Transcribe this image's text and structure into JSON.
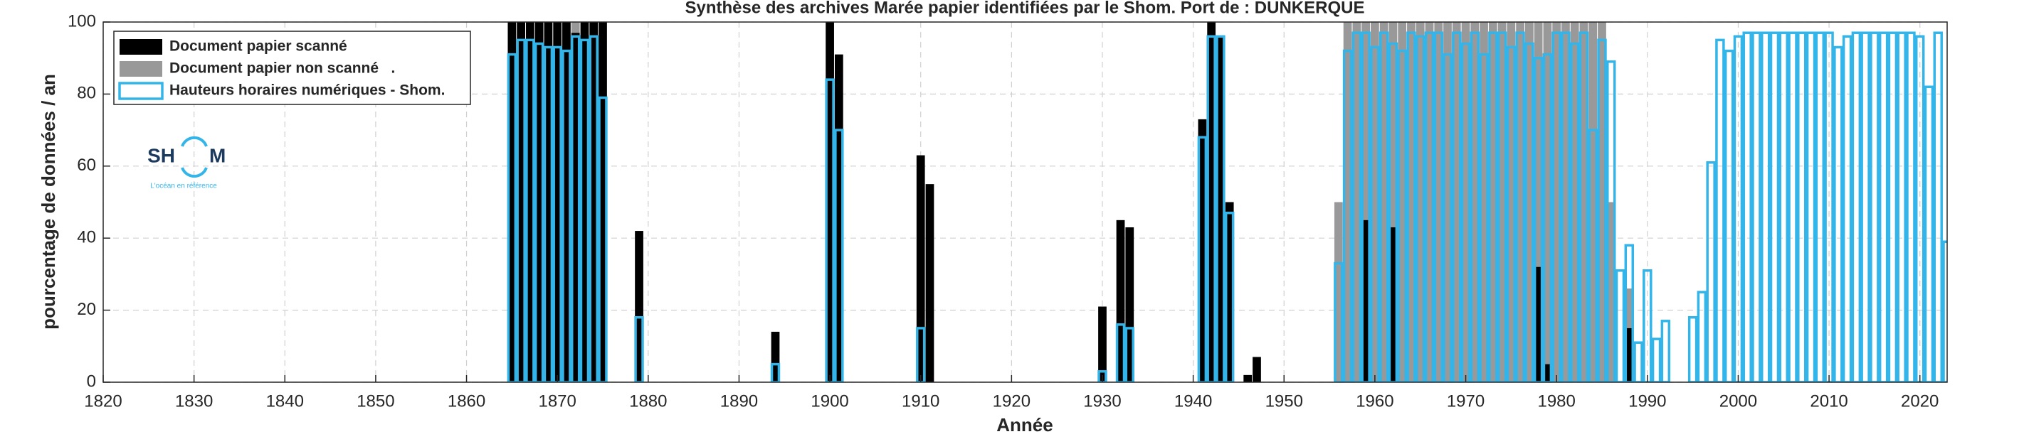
{
  "chart_data": {
    "type": "bar",
    "title": "Synthèse des archives Marée papier identifiées par le Shom. Port de : DUNKERQUE",
    "xlabel": "Année",
    "ylabel": "pourcentage de données / an",
    "xlim": [
      1820,
      2023
    ],
    "ylim": [
      0,
      100
    ],
    "xticks": [
      1820,
      1830,
      1840,
      1850,
      1860,
      1870,
      1880,
      1890,
      1900,
      1910,
      1920,
      1930,
      1940,
      1950,
      1960,
      1970,
      1980,
      1990,
      2000,
      2010,
      2020
    ],
    "yticks": [
      0,
      20,
      40,
      60,
      80,
      100
    ],
    "grid": true,
    "legend": "upper-left",
    "series": [
      {
        "name": "Document papier non scanné   .",
        "color": "#999999",
        "outline": false,
        "x": [
          1872,
          1956,
          1957,
          1958,
          1959,
          1960,
          1961,
          1962,
          1963,
          1964,
          1965,
          1966,
          1967,
          1968,
          1969,
          1970,
          1971,
          1972,
          1973,
          1974,
          1975,
          1976,
          1977,
          1978,
          1979,
          1980,
          1981,
          1982,
          1983,
          1984,
          1985,
          1986,
          1988
        ],
        "values": [
          100,
          50,
          100,
          100,
          100,
          100,
          100,
          100,
          100,
          100,
          100,
          100,
          100,
          100,
          100,
          100,
          100,
          100,
          100,
          100,
          100,
          100,
          100,
          100,
          100,
          100,
          100,
          100,
          100,
          100,
          100,
          50,
          26
        ]
      },
      {
        "name": "Document papier scanné",
        "color": "#000000",
        "outline": false,
        "x": [
          1865,
          1866,
          1867,
          1868,
          1869,
          1870,
          1871,
          1872,
          1873,
          1874,
          1875,
          1879,
          1894,
          1900,
          1901,
          1910,
          1911,
          1930,
          1932,
          1933,
          1941,
          1942,
          1943,
          1944,
          1946,
          1947,
          1959,
          1962,
          1978,
          1979,
          1988
        ],
        "values": [
          100,
          100,
          100,
          100,
          100,
          100,
          100,
          97,
          100,
          100,
          100,
          42,
          14,
          100,
          91,
          63,
          55,
          21,
          45,
          43,
          73,
          100,
          96,
          50,
          2,
          7,
          45,
          43,
          32,
          5,
          15
        ]
      },
      {
        "name": "Hauteurs horaires numériques - Shom.",
        "color": "#33b5ea",
        "outline": true,
        "x": [
          1865,
          1866,
          1867,
          1868,
          1869,
          1870,
          1871,
          1872,
          1873,
          1874,
          1875,
          1879,
          1894,
          1900,
          1901,
          1910,
          1930,
          1932,
          1933,
          1941,
          1942,
          1943,
          1944,
          1956,
          1957,
          1958,
          1959,
          1960,
          1961,
          1962,
          1963,
          1964,
          1965,
          1966,
          1967,
          1968,
          1969,
          1970,
          1971,
          1972,
          1973,
          1974,
          1975,
          1976,
          1977,
          1978,
          1979,
          1980,
          1981,
          1982,
          1983,
          1984,
          1985,
          1986,
          1987,
          1988,
          1989,
          1990,
          1991,
          1992,
          1995,
          1996,
          1997,
          1998,
          1999,
          2000,
          2001,
          2002,
          2003,
          2004,
          2005,
          2006,
          2007,
          2008,
          2009,
          2010,
          2011,
          2012,
          2013,
          2014,
          2015,
          2016,
          2017,
          2018,
          2019,
          2020,
          2021,
          2022,
          2023
        ],
        "values": [
          91,
          95,
          95,
          94,
          93,
          93,
          92,
          96,
          95,
          96,
          79,
          18,
          5,
          84,
          70,
          15,
          3,
          16,
          15,
          68,
          96,
          96,
          47,
          33,
          92,
          97,
          97,
          93,
          97,
          94,
          92,
          97,
          96,
          97,
          97,
          91,
          97,
          94,
          97,
          91,
          97,
          97,
          93,
          97,
          94,
          90,
          91,
          97,
          97,
          94,
          97,
          70,
          95,
          89,
          31,
          38,
          11,
          31,
          12,
          17,
          18,
          25,
          61,
          95,
          92,
          96,
          97,
          97,
          97,
          97,
          97,
          97,
          97,
          97,
          97,
          97,
          93,
          96,
          97,
          97,
          97,
          97,
          97,
          97,
          97,
          96,
          82,
          97,
          39
        ]
      }
    ]
  },
  "logo": {
    "left": "SH",
    "right": "M",
    "tagline": "L'océan en référence"
  }
}
